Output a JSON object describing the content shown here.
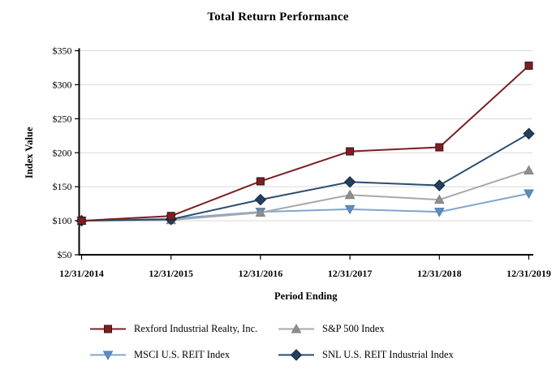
{
  "title": "Total Return Performance",
  "colors": {
    "background": "#ffffff",
    "gridline": "#d9d9d9",
    "axis": "#000000",
    "rexford_red": "#7b2022",
    "sp500_gray": "#a8a8a8",
    "msci_blue": "#7ea6d0",
    "snl_navy": "#2b4d6f"
  },
  "chart_data": {
    "type": "line",
    "title": "Total Return Performance",
    "xlabel": "Period Ending",
    "ylabel": "Index Value",
    "categories": [
      "12/31/2014",
      "12/31/2015",
      "12/31/2016",
      "12/31/2017",
      "12/31/2018",
      "12/31/2019"
    ],
    "series": [
      {
        "id": "rexford",
        "name": "Rexford Industrial Realty, Inc.",
        "marker": "square",
        "color": "#7b2022",
        "marker_color": "#7b2022",
        "marker_stroke": "#3c0d0e",
        "values": [
          100,
          107,
          158,
          202,
          208,
          328
        ]
      },
      {
        "id": "sp500",
        "name": "S&P 500 Index",
        "marker": "triangle-up",
        "color": "#a8a8a8",
        "marker_color": "#8f8f8f",
        "marker_stroke": "#7f7f7f",
        "values": [
          100,
          101,
          112,
          138,
          131,
          174
        ]
      },
      {
        "id": "msci-us-reit",
        "name": "MSCI U.S. REIT Index",
        "marker": "triangle-down",
        "color": "#7ea6d0",
        "marker_color": "#5c8dc0",
        "marker_stroke": "#4a7cae",
        "values": [
          100,
          103,
          113,
          117,
          113,
          140
        ]
      },
      {
        "id": "snl-us-reit-industrial",
        "name": "SNL U.S. REIT Industrial Index",
        "marker": "diamond",
        "color": "#2b4d6f",
        "marker_color": "#243f5f",
        "marker_stroke": "#16293f",
        "values": [
          100,
          102,
          131,
          157,
          152,
          228
        ]
      }
    ],
    "ylim": [
      50,
      350
    ],
    "ytick_step": 50,
    "ytick_prefix": "$",
    "grid": true,
    "legend_position": "bottom",
    "draw_order": [
      2,
      1,
      3,
      0
    ]
  }
}
